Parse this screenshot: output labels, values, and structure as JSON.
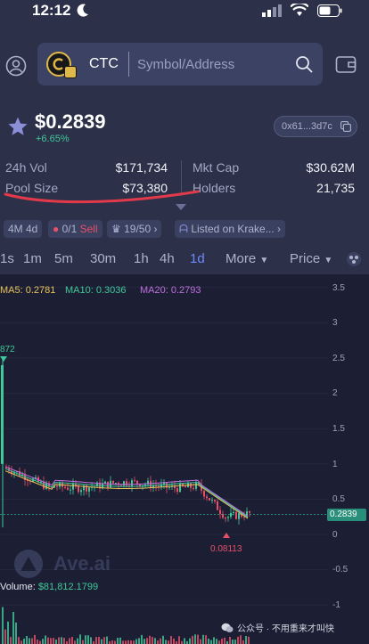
{
  "status_bar": {
    "time": "12:12"
  },
  "header": {
    "token_symbol": "CTC",
    "search_placeholder": "Symbol/Address"
  },
  "token": {
    "price": "$0.2839",
    "change": "+6.65%",
    "address": "0x61...3d7c"
  },
  "stats": {
    "vol_24h": {
      "label": "24h Vol",
      "value": "$171,734"
    },
    "pool_size": {
      "label": "Pool Size",
      "value": "$73,380"
    },
    "mkt_cap": {
      "label": "Mkt Cap",
      "value": "$30.62M"
    },
    "holders": {
      "label": "Holders",
      "value": "21,735"
    }
  },
  "chips": {
    "age": "4M 4d",
    "sell_count": "0/1",
    "sell_label": "Sell",
    "rank": "19/50",
    "listing": "Listed on Krake..."
  },
  "timeframes": [
    "1s",
    "1m",
    "5m",
    "30m",
    "1h",
    "4h",
    "1d"
  ],
  "active_timeframe": "1d",
  "more_label": "More",
  "price_label": "Price",
  "chart": {
    "ma5": "MA5: 0.2781",
    "ma10": "MA10: 0.3036",
    "ma20": "MA20: 0.2793",
    "y_axis": [
      "3.5",
      "3",
      "2.5",
      "2",
      "1.5",
      "1",
      "0.5",
      "0",
      "-0.5",
      "-1"
    ],
    "current_price_tag": "0.2839",
    "low_label": "0.08113",
    "high_label_fragment": "872",
    "volume_label": "Volume: ",
    "volume_value": "$81,812.1799",
    "watermark": "Ave.ai",
    "wechat_text": "公众号 · 不用重来才叫快"
  },
  "colors": {
    "accent": "#6b8cff",
    "up": "#3fc99a",
    "down": "#e8506a",
    "ma5": "#e8c45a",
    "ma10": "#3fc99a",
    "ma20": "#c070e0"
  }
}
